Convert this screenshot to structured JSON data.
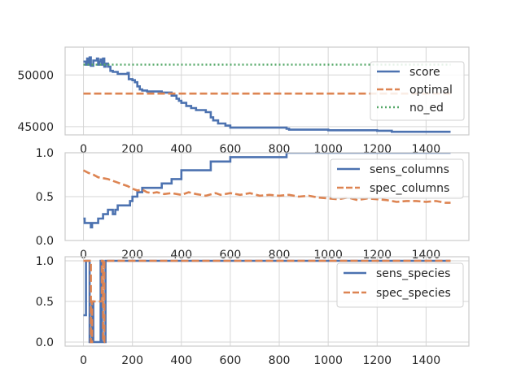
{
  "chart_data": [
    {
      "type": "line",
      "xlim": [
        -75,
        1575
      ],
      "ylim": [
        44200,
        52700
      ],
      "xticks": [
        0,
        200,
        400,
        600,
        800,
        1000,
        1200,
        1400
      ],
      "yticks": [
        45000,
        50000
      ],
      "grid": true,
      "legend_position": "center-right",
      "series": [
        {
          "name": "score",
          "color": "#4c72b0",
          "style": "solid",
          "step": true,
          "points": [
            [
              0,
              51300
            ],
            [
              10,
              51000
            ],
            [
              15,
              51600
            ],
            [
              20,
              51000
            ],
            [
              25,
              51700
            ],
            [
              30,
              50900
            ],
            [
              40,
              51400
            ],
            [
              50,
              51400
            ],
            [
              55,
              51600
            ],
            [
              60,
              51000
            ],
            [
              65,
              51300
            ],
            [
              70,
              51500
            ],
            [
              75,
              51000
            ],
            [
              80,
              51600
            ],
            [
              85,
              50800
            ],
            [
              90,
              51100
            ],
            [
              100,
              50800
            ],
            [
              110,
              50400
            ],
            [
              120,
              50300
            ],
            [
              140,
              50100
            ],
            [
              180,
              50200
            ],
            [
              185,
              49600
            ],
            [
              200,
              49500
            ],
            [
              210,
              49300
            ],
            [
              220,
              48900
            ],
            [
              230,
              48600
            ],
            [
              240,
              48500
            ],
            [
              260,
              48400
            ],
            [
              320,
              48300
            ],
            [
              360,
              48000
            ],
            [
              380,
              47700
            ],
            [
              390,
              47500
            ],
            [
              400,
              47300
            ],
            [
              420,
              47000
            ],
            [
              440,
              46800
            ],
            [
              460,
              46600
            ],
            [
              500,
              46400
            ],
            [
              520,
              45900
            ],
            [
              530,
              45600
            ],
            [
              550,
              45300
            ],
            [
              580,
              45100
            ],
            [
              600,
              44900
            ],
            [
              680,
              44900
            ],
            [
              830,
              44800
            ],
            [
              840,
              44700
            ],
            [
              1000,
              44650
            ],
            [
              1200,
              44600
            ],
            [
              1260,
              44500
            ],
            [
              1500,
              44500
            ]
          ]
        },
        {
          "name": "optimal",
          "color": "#dd8452",
          "style": "dashed",
          "step": false,
          "points": [
            [
              0,
              48200
            ],
            [
              1500,
              48200
            ]
          ]
        },
        {
          "name": "no_ed",
          "color": "#55a868",
          "style": "dotted",
          "step": false,
          "points": [
            [
              0,
              51000
            ],
            [
              1500,
              51000
            ]
          ]
        }
      ]
    },
    {
      "type": "line",
      "xlim": [
        -75,
        1575
      ],
      "ylim": [
        0,
        1
      ],
      "xticks": [
        0,
        200,
        400,
        600,
        800,
        1000,
        1200,
        1400
      ],
      "yticks": [
        0.0,
        0.5,
        1.0
      ],
      "ytick_labels": [
        "0.0",
        "0.5",
        "1.0"
      ],
      "grid": true,
      "legend_position": "upper-right",
      "series": [
        {
          "name": "sens_columns",
          "color": "#4c72b0",
          "style": "solid",
          "step": true,
          "points": [
            [
              0,
              0.25
            ],
            [
              5,
              0.2
            ],
            [
              30,
              0.15
            ],
            [
              35,
              0.2
            ],
            [
              60,
              0.25
            ],
            [
              80,
              0.3
            ],
            [
              100,
              0.35
            ],
            [
              120,
              0.3
            ],
            [
              130,
              0.35
            ],
            [
              140,
              0.4
            ],
            [
              190,
              0.45
            ],
            [
              200,
              0.5
            ],
            [
              220,
              0.55
            ],
            [
              240,
              0.6
            ],
            [
              320,
              0.65
            ],
            [
              360,
              0.7
            ],
            [
              400,
              0.8
            ],
            [
              520,
              0.9
            ],
            [
              600,
              0.95
            ],
            [
              830,
              1.0
            ],
            [
              1500,
              1.0
            ]
          ]
        },
        {
          "name": "spec_columns",
          "color": "#dd8452",
          "style": "dashed",
          "step": false,
          "points": [
            [
              0,
              0.8
            ],
            [
              20,
              0.77
            ],
            [
              40,
              0.75
            ],
            [
              60,
              0.72
            ],
            [
              80,
              0.71
            ],
            [
              100,
              0.7
            ],
            [
              120,
              0.68
            ],
            [
              140,
              0.66
            ],
            [
              160,
              0.64
            ],
            [
              180,
              0.62
            ],
            [
              200,
              0.59
            ],
            [
              220,
              0.57
            ],
            [
              240,
              0.58
            ],
            [
              260,
              0.55
            ],
            [
              280,
              0.54
            ],
            [
              300,
              0.55
            ],
            [
              330,
              0.53
            ],
            [
              360,
              0.54
            ],
            [
              400,
              0.52
            ],
            [
              430,
              0.55
            ],
            [
              460,
              0.53
            ],
            [
              500,
              0.51
            ],
            [
              540,
              0.54
            ],
            [
              560,
              0.52
            ],
            [
              600,
              0.54
            ],
            [
              640,
              0.52
            ],
            [
              680,
              0.54
            ],
            [
              720,
              0.51
            ],
            [
              760,
              0.52
            ],
            [
              800,
              0.51
            ],
            [
              840,
              0.52
            ],
            [
              880,
              0.5
            ],
            [
              920,
              0.51
            ],
            [
              960,
              0.49
            ],
            [
              1000,
              0.48
            ],
            [
              1040,
              0.47
            ],
            [
              1080,
              0.49
            ],
            [
              1120,
              0.46
            ],
            [
              1160,
              0.48
            ],
            [
              1200,
              0.47
            ],
            [
              1240,
              0.46
            ],
            [
              1280,
              0.44
            ],
            [
              1320,
              0.45
            ],
            [
              1360,
              0.45
            ],
            [
              1400,
              0.44
            ],
            [
              1440,
              0.45
            ],
            [
              1480,
              0.43
            ],
            [
              1500,
              0.43
            ]
          ]
        }
      ]
    },
    {
      "type": "line",
      "xlim": [
        -75,
        1575
      ],
      "ylim": [
        -0.05,
        1.05
      ],
      "xticks": [
        0,
        200,
        400,
        600,
        800,
        1000,
        1200,
        1400
      ],
      "yticks": [
        0.0,
        0.5,
        1.0
      ],
      "ytick_labels": [
        "0.0",
        "0.5",
        "1.0"
      ],
      "grid": true,
      "legend_position": "upper-right",
      "series": [
        {
          "name": "sens_species",
          "color": "#4c72b0",
          "style": "solid",
          "step": true,
          "points": [
            [
              0,
              0.33
            ],
            [
              10,
              1.0
            ],
            [
              20,
              1.0
            ],
            [
              25,
              0.0
            ],
            [
              30,
              0.0
            ],
            [
              35,
              0.5
            ],
            [
              40,
              0.0
            ],
            [
              55,
              0.0
            ],
            [
              60,
              0.0
            ],
            [
              70,
              1.0
            ],
            [
              75,
              0.0
            ],
            [
              85,
              0.0
            ],
            [
              90,
              1.0
            ],
            [
              1500,
              1.0
            ]
          ]
        },
        {
          "name": "spec_species",
          "color": "#dd8452",
          "style": "dashed",
          "step": true,
          "points": [
            [
              0,
              1.0
            ],
            [
              25,
              1.0
            ],
            [
              30,
              0.0
            ],
            [
              35,
              0.5
            ],
            [
              70,
              0.5
            ],
            [
              75,
              1.0
            ],
            [
              80,
              0.0
            ],
            [
              85,
              1.0
            ],
            [
              90,
              1.0
            ],
            [
              1500,
              1.0
            ]
          ]
        }
      ]
    }
  ]
}
